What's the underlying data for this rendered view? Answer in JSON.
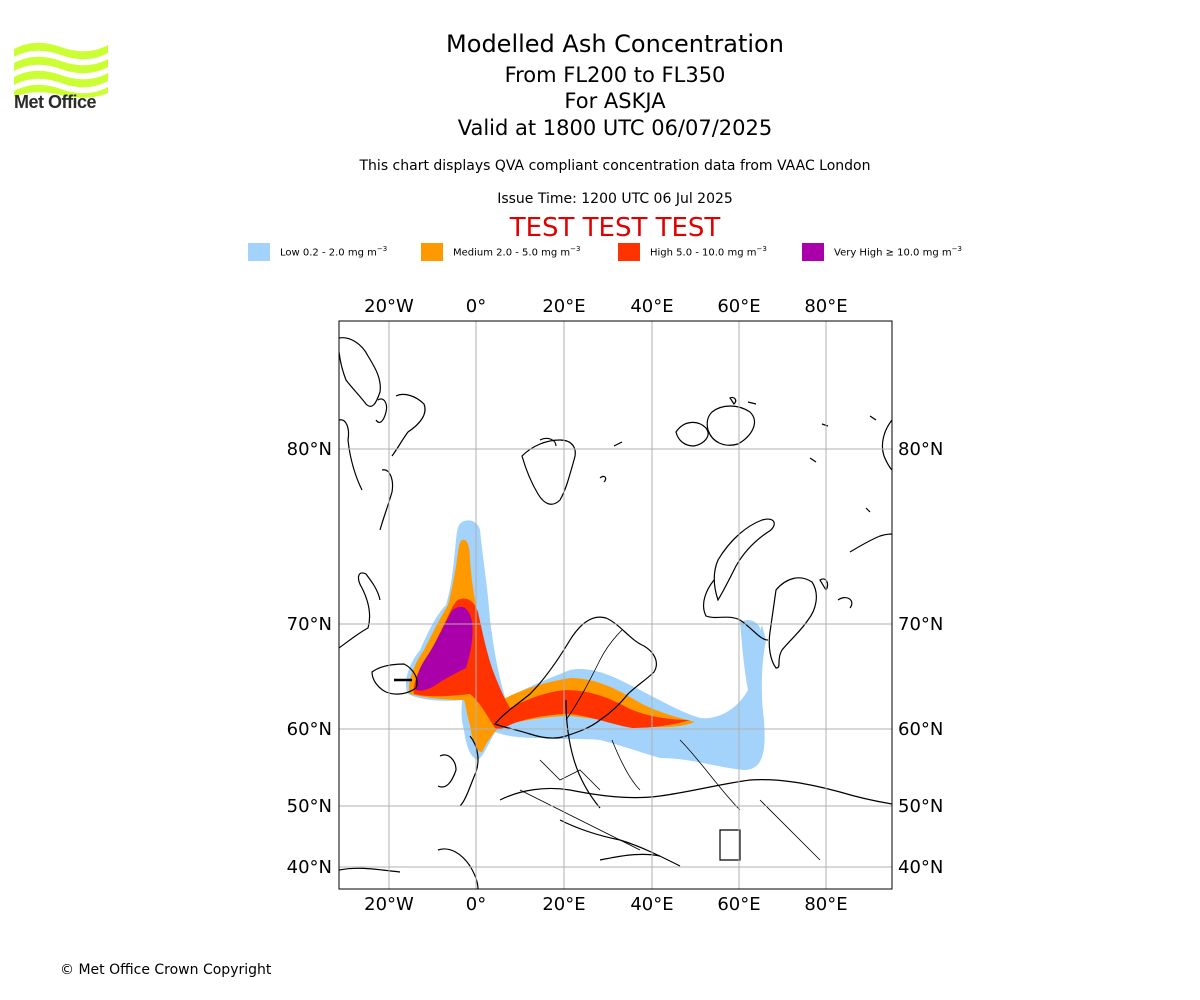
{
  "header": {
    "title": "Modelled Ash Concentration",
    "subtitle_levels": "From FL200 to FL350",
    "subtitle_volcano": "For ASKJA",
    "subtitle_valid": "Valid at 1800 UTC 06/07/2025",
    "note": "This chart displays QVA compliant concentration data from VAAC London",
    "issue_time": "Issue Time: 1200 UTC 06 Jul 2025",
    "test_banner": "TEST TEST TEST"
  },
  "logo": {
    "text": "Met Office",
    "icon": "met-office-wave-logo",
    "color": "#ccff33"
  },
  "legend": {
    "items": [
      {
        "label": "Low 0.2 - 2.0 mg m",
        "unit_exp": "−3",
        "color": "#a3d3fa"
      },
      {
        "label": "Medium 2.0 - 5.0 mg m",
        "unit_exp": "−3",
        "color": "#ff9900"
      },
      {
        "label": "High 5.0 - 10.0 mg m",
        "unit_exp": "−3",
        "color": "#ff3300"
      },
      {
        "label": "Very High  ≥  10.0 mg m",
        "unit_exp": "−3",
        "color": "#aa00aa"
      }
    ]
  },
  "map": {
    "lon_ticks": [
      "20°W",
      "0°",
      "20°E",
      "40°E",
      "60°E",
      "80°E"
    ],
    "lat_ticks": [
      "80°N",
      "70°N",
      "60°N",
      "50°N",
      "40°N"
    ],
    "grid": true
  },
  "footer": {
    "copyright": "© Met Office Crown Copyright"
  }
}
